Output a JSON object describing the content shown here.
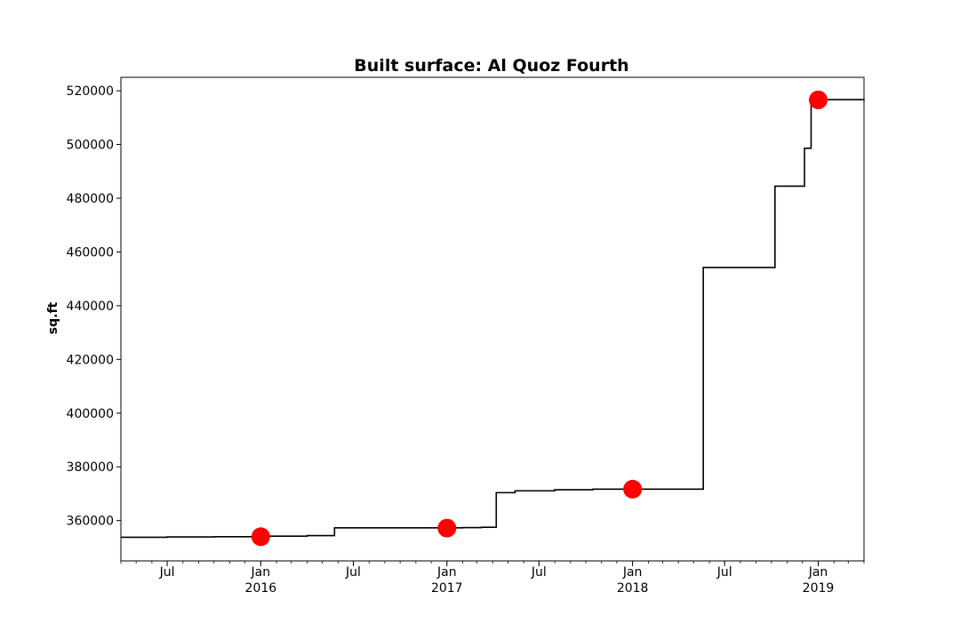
{
  "chart_data": {
    "type": "line",
    "title": "Built surface: Al Quoz Fourth",
    "xlabel": "",
    "ylabel": "sq.ft",
    "ylim": [
      345000,
      525000
    ],
    "xlim": [
      "2015-04-01",
      "2019-04-01"
    ],
    "grid": false,
    "y_ticks": [
      360000,
      380000,
      400000,
      420000,
      440000,
      460000,
      480000,
      500000,
      520000
    ],
    "x_major_ticks": [
      {
        "date": "2015-07-01",
        "label": "Jul",
        "year": ""
      },
      {
        "date": "2016-01-01",
        "label": "Jan",
        "year": "2016"
      },
      {
        "date": "2016-07-01",
        "label": "Jul",
        "year": ""
      },
      {
        "date": "2017-01-01",
        "label": "Jan",
        "year": "2017"
      },
      {
        "date": "2017-07-01",
        "label": "Jul",
        "year": ""
      },
      {
        "date": "2018-01-01",
        "label": "Jan",
        "year": "2018"
      },
      {
        "date": "2018-07-01",
        "label": "Jul",
        "year": ""
      },
      {
        "date": "2019-01-01",
        "label": "Jan",
        "year": "2019"
      }
    ],
    "series": [
      {
        "style": "step",
        "color": "#000000",
        "points": [
          {
            "x": "2015-04-01",
            "y": 353800
          },
          {
            "x": "2015-07-01",
            "y": 353900
          },
          {
            "x": "2015-10-01",
            "y": 354000
          },
          {
            "x": "2016-01-15",
            "y": 354200
          },
          {
            "x": "2016-04-01",
            "y": 354400
          },
          {
            "x": "2016-05-25",
            "y": 357300
          },
          {
            "x": "2017-02-01",
            "y": 357400
          },
          {
            "x": "2017-03-10",
            "y": 357500
          },
          {
            "x": "2017-04-08",
            "y": 370400
          },
          {
            "x": "2017-05-15",
            "y": 371100
          },
          {
            "x": "2017-08-01",
            "y": 371500
          },
          {
            "x": "2017-10-15",
            "y": 371700
          },
          {
            "x": "2018-05-20",
            "y": 454200
          },
          {
            "x": "2018-10-08",
            "y": 484500
          },
          {
            "x": "2018-12-05",
            "y": 498600
          },
          {
            "x": "2018-12-18",
            "y": 516700
          },
          {
            "x": "2019-04-01",
            "y": 517000
          }
        ]
      },
      {
        "style": "markers",
        "color": "#ff0000",
        "points": [
          {
            "x": "2016-01-01",
            "y": 354000
          },
          {
            "x": "2017-01-01",
            "y": 357200
          },
          {
            "x": "2018-01-01",
            "y": 371700
          },
          {
            "x": "2019-01-01",
            "y": 516600
          }
        ]
      }
    ]
  }
}
